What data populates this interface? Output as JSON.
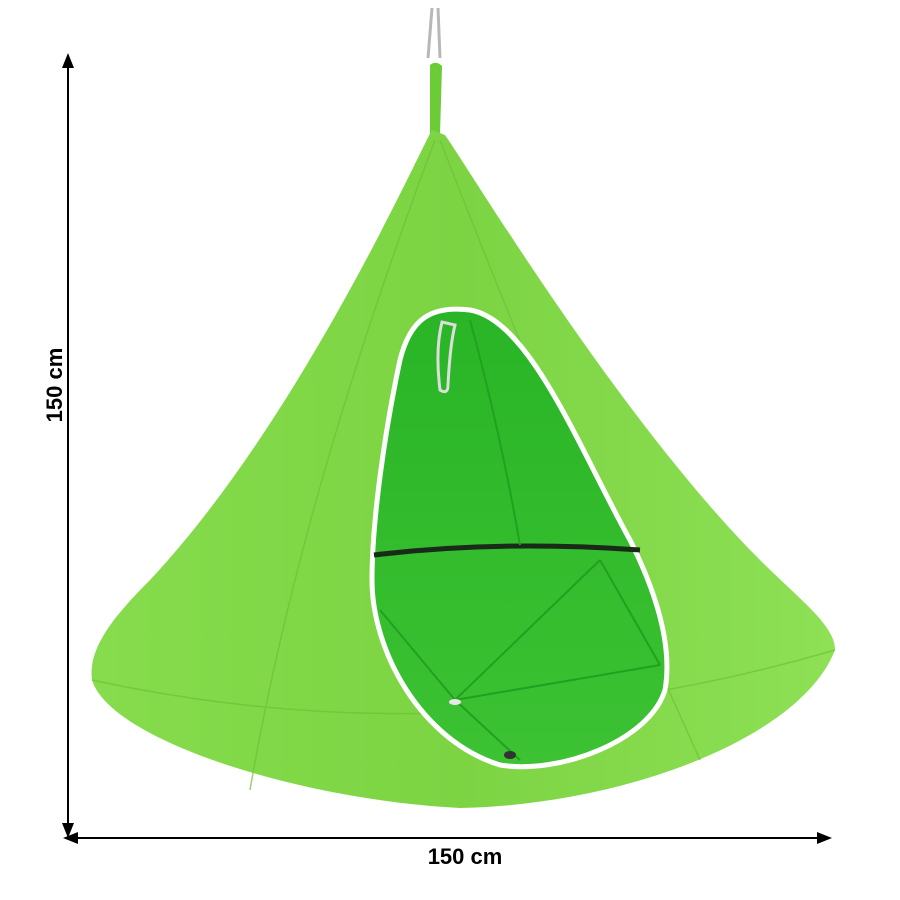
{
  "dimensions": {
    "height_label": "150 cm",
    "width_label": "150 cm"
  },
  "product": {
    "type": "hanging tent chair",
    "colors": {
      "outer": "#7fd845",
      "inner": "#2fb52a",
      "trim": "#ffffff",
      "arrow": "#000000"
    }
  }
}
